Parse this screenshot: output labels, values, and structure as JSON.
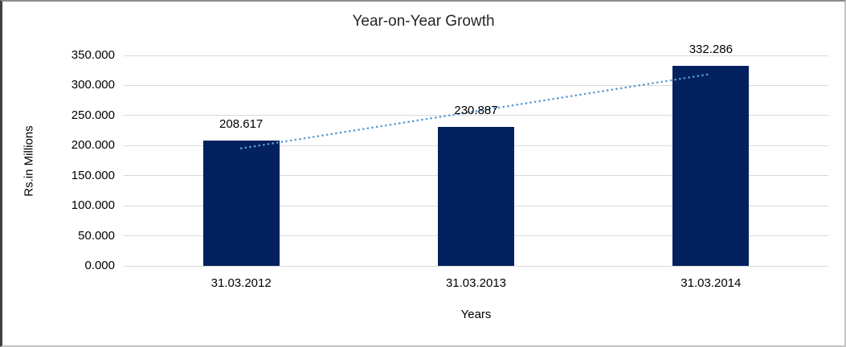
{
  "chart_data": {
    "type": "bar",
    "title": "Year-on-Year Growth",
    "xlabel": "Years",
    "ylabel": "Rs.in Millions",
    "categories": [
      "31.03.2012",
      "31.03.2013",
      "31.03.2014"
    ],
    "values": [
      208.617,
      230.887,
      332.286
    ],
    "data_labels": [
      "208.617",
      "230.887",
      "332.286"
    ],
    "yticks": [
      "350.000",
      "300.000",
      "250.000",
      "200.000",
      "150.000",
      "100.000",
      "50.000",
      "0.000"
    ],
    "ylim": [
      0,
      350
    ],
    "ytick_interval": 50,
    "grid": true,
    "legend_position": "none",
    "trendline": {
      "type": "linear",
      "style": "dotted"
    },
    "colors": {
      "bar": "#02215e",
      "gridline": "#d9d9d9",
      "trendline": "#5b9bd5",
      "text": "#000000",
      "title_text": "#262626"
    }
  }
}
